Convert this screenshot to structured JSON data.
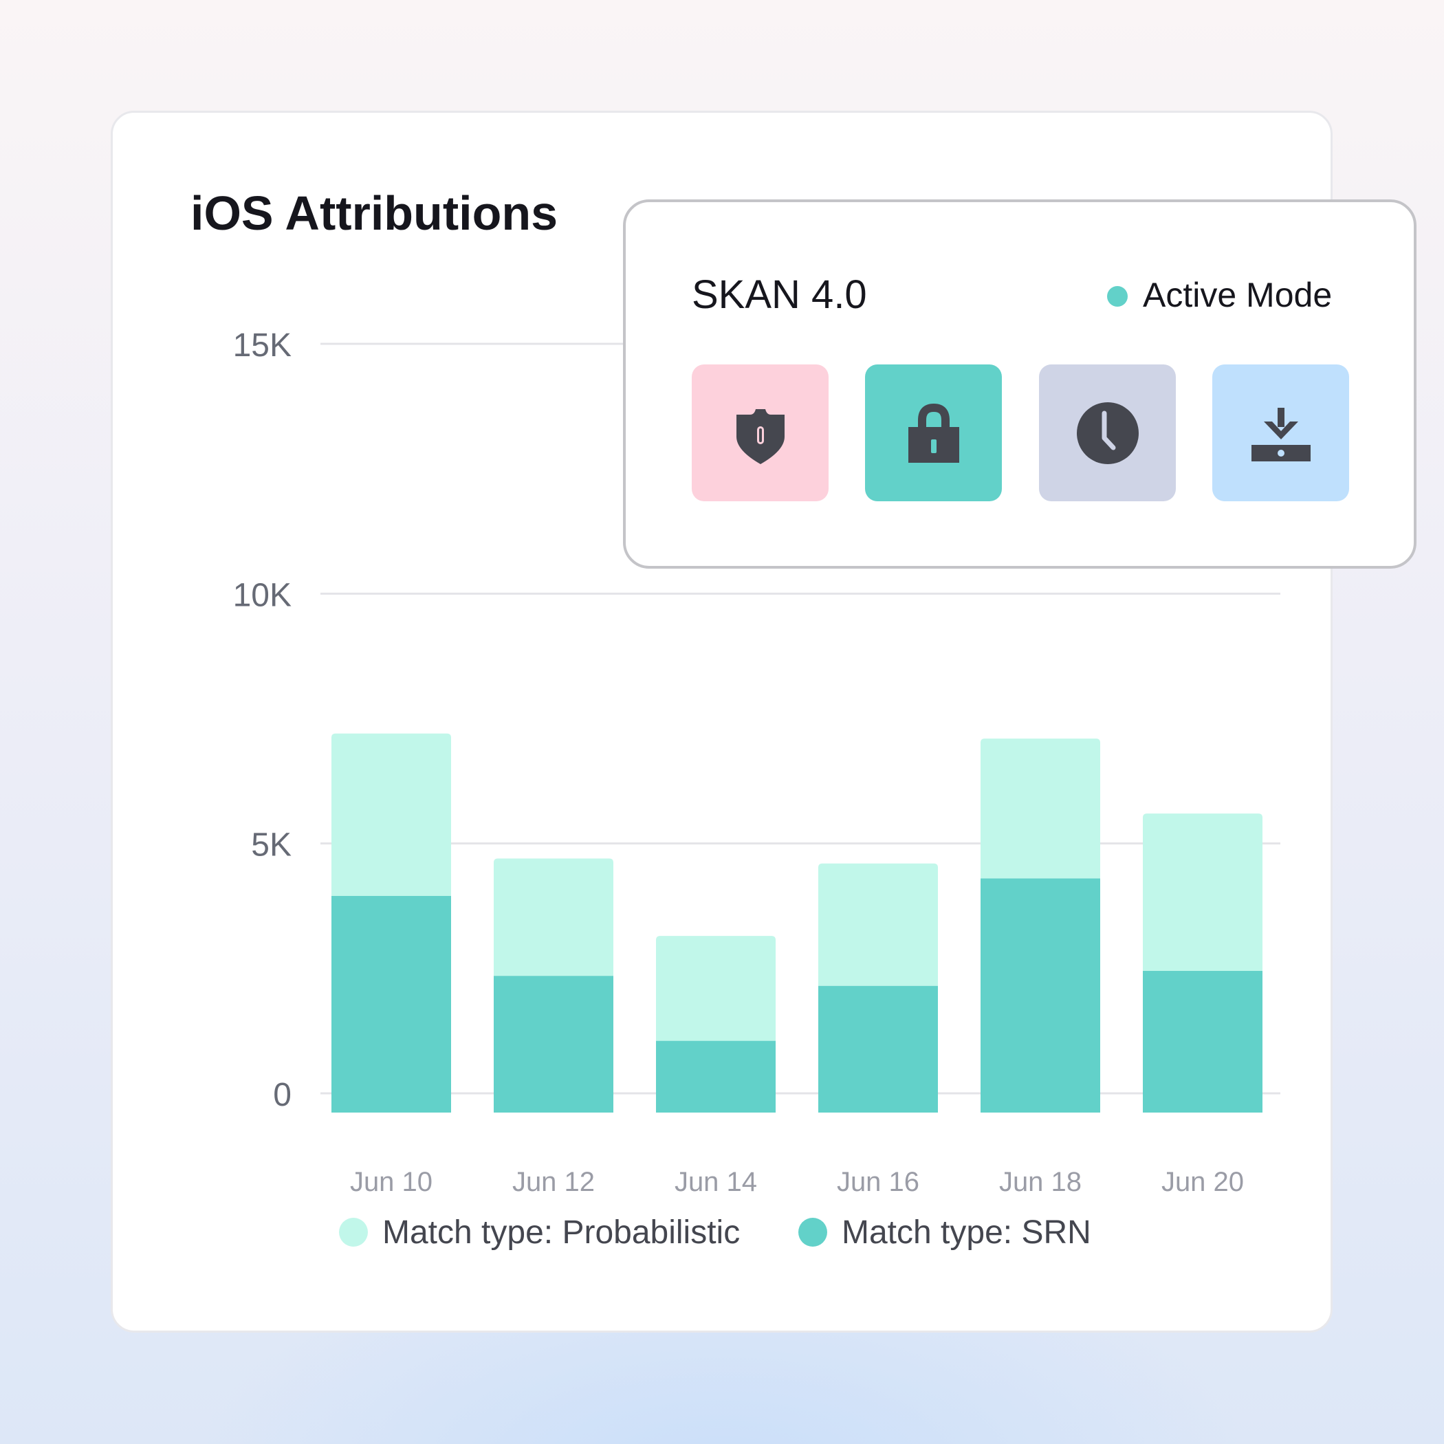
{
  "title": "iOS Attributions",
  "chart_data": {
    "type": "bar",
    "stacked": true,
    "categories": [
      "Jun 10",
      "Jun 12",
      "Jun 14",
      "Jun 16",
      "Jun 18",
      "Jun 20"
    ],
    "series": [
      {
        "name": "Match type: SRN",
        "color": "#62d1c9",
        "values": [
          3950,
          2350,
          1050,
          2150,
          4300,
          2450
        ]
      },
      {
        "name": "Match type: Probabilistic",
        "color": "#c1f7ea",
        "values": [
          3250,
          2350,
          2100,
          2450,
          2800,
          3150
        ]
      }
    ],
    "yticks": [
      "0",
      "5K",
      "10K",
      "15K"
    ],
    "ytick_values": [
      0,
      5000,
      10000,
      15000
    ],
    "ylim": [
      0,
      15000
    ],
    "grid": true,
    "legend_position": "bottom"
  },
  "popup": {
    "title": "SKAN 4.0",
    "status": "Active Mode",
    "status_color": "#62d1c9",
    "tiles": [
      {
        "icon": "shield-icon",
        "color": "#fdd1dc"
      },
      {
        "icon": "lock-icon",
        "color": "#62d1c9"
      },
      {
        "icon": "clock-icon",
        "color": "#cfd4e6"
      },
      {
        "icon": "download-icon",
        "color": "#bfe0fd"
      }
    ]
  }
}
